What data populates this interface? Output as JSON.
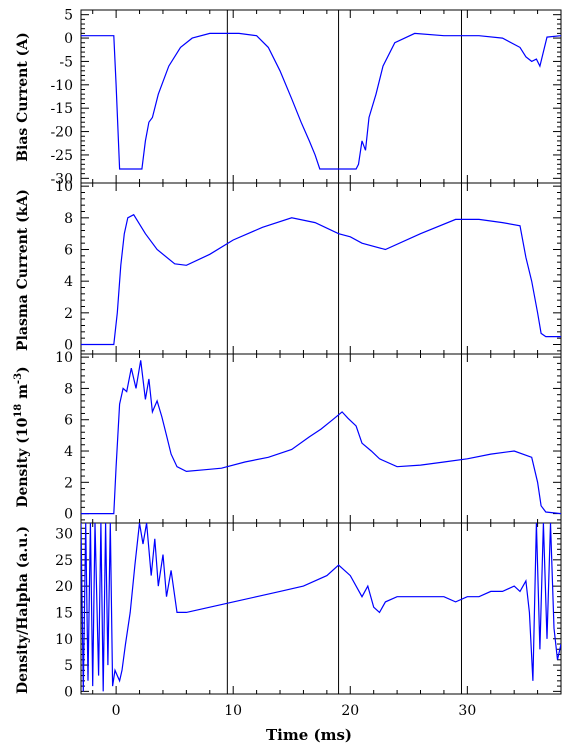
{
  "chart_data": {
    "type": "line",
    "xlabel": "Time (ms)",
    "xlim": [
      -3,
      38
    ],
    "xticks": [
      0,
      10,
      20,
      30
    ],
    "vlines": [
      9.5,
      19,
      29.5
    ],
    "line_color": "#0000ff",
    "panels": [
      {
        "id": "bias",
        "ylabel": "Bias Current (A)",
        "ylim": [
          -31,
          6
        ],
        "yticks": [
          5,
          0,
          -5,
          -10,
          -15,
          -20,
          -25,
          -30
        ],
        "x": [
          -3,
          -0.2,
          0.0,
          0.3,
          2.2,
          2.5,
          2.8,
          3.1,
          3.6,
          4.5,
          5.5,
          6.5,
          8.0,
          10.5,
          12.0,
          13.0,
          14.0,
          15.0,
          15.8,
          16.5,
          17.0,
          17.4,
          17.6,
          20.5,
          20.7,
          21.0,
          21.3,
          21.6,
          22.2,
          22.8,
          23.8,
          25.5,
          28.0,
          31.0,
          33.0,
          34.5,
          35.0,
          35.5,
          35.9,
          36.2,
          36.8,
          38
        ],
        "y": [
          0.5,
          0.5,
          -10,
          -28,
          -28,
          -22,
          -18,
          -17,
          -12,
          -6,
          -2,
          0,
          1.0,
          1.0,
          0.5,
          -2,
          -7,
          -13,
          -18,
          -22,
          -25,
          -28,
          -28,
          -28,
          -27,
          -22,
          -24,
          -17,
          -12,
          -6,
          -1,
          1.0,
          0.5,
          0.5,
          0,
          -2,
          -4,
          -5,
          -4.5,
          -6,
          0.2,
          0.5
        ]
      },
      {
        "id": "plasma",
        "ylabel": "Plasma Current (kA)",
        "ylim": [
          -0.6,
          10.2
        ],
        "yticks": [
          0,
          2,
          4,
          6,
          8,
          10
        ],
        "x": [
          -3,
          -0.2,
          0.1,
          0.4,
          0.7,
          1.0,
          1.5,
          2.5,
          3.5,
          5.0,
          6.0,
          8.0,
          10.0,
          12.5,
          15.0,
          17.0,
          19.0,
          20.0,
          21.0,
          23.0,
          26.0,
          29.0,
          31.0,
          33.0,
          34.5,
          35.0,
          35.5,
          36.0,
          36.3,
          36.7,
          38
        ],
        "y": [
          0,
          0,
          2,
          5,
          7,
          8,
          8.2,
          7,
          6,
          5.1,
          5.0,
          5.7,
          6.6,
          7.4,
          8.0,
          7.7,
          7.0,
          6.8,
          6.4,
          6.0,
          7.0,
          7.9,
          7.9,
          7.7,
          7.5,
          5.5,
          4,
          2,
          0.7,
          0.5,
          0.5
        ]
      },
      {
        "id": "density",
        "ylabel": "Density (10^18 m^-3)",
        "ylim": [
          -0.6,
          10.2
        ],
        "yticks": [
          0,
          2,
          4,
          6,
          8,
          10
        ],
        "x": [
          -3,
          -0.2,
          0.0,
          0.3,
          0.6,
          0.9,
          1.3,
          1.7,
          2.1,
          2.5,
          2.8,
          3.1,
          3.5,
          3.9,
          4.3,
          4.7,
          5.2,
          6.0,
          7.5,
          9.0,
          11.0,
          13.0,
          15.0,
          16.5,
          17.5,
          18.5,
          19.3,
          19.8,
          20.5,
          21.0,
          21.8,
          22.5,
          24.0,
          26.0,
          28.0,
          30.0,
          32.0,
          34.0,
          35.5,
          36.0,
          36.3,
          36.7,
          38
        ],
        "y": [
          0,
          0,
          3,
          7,
          8,
          7.8,
          9.3,
          8.0,
          9.8,
          7.3,
          8.6,
          6.5,
          7.2,
          6.2,
          5.0,
          3.8,
          3.0,
          2.7,
          2.8,
          2.9,
          3.3,
          3.6,
          4.1,
          4.9,
          5.4,
          6.0,
          6.5,
          6.1,
          5.6,
          4.5,
          4.0,
          3.5,
          3.0,
          3.1,
          3.3,
          3.5,
          3.8,
          4.0,
          3.6,
          2.0,
          0.5,
          0.1,
          0
        ],
        "labels": [
          "0",
          "2",
          "4",
          "6",
          "8",
          "10"
        ]
      },
      {
        "id": "ratio",
        "ylabel": "Density/Halpha (a.u.)",
        "ylim": [
          -0.5,
          32
        ],
        "yticks": [
          0,
          5,
          10,
          15,
          20,
          25,
          30
        ],
        "x": [
          -3,
          -2.8,
          -2.6,
          -2.4,
          -2.2,
          -2.0,
          -1.8,
          -1.5,
          -1.3,
          -1.1,
          -0.9,
          -0.7,
          -0.5,
          -0.3,
          -0.1,
          0.1,
          0.3,
          0.5,
          0.8,
          1.2,
          1.6,
          2.0,
          2.3,
          2.6,
          3.0,
          3.3,
          3.6,
          4.0,
          4.3,
          4.7,
          5.2,
          6.0,
          8.0,
          10.0,
          12.0,
          14.0,
          16.0,
          18.0,
          19.0,
          20.0,
          21.0,
          21.5,
          22.0,
          22.5,
          23.0,
          24.0,
          26.0,
          28.0,
          29.0,
          30.0,
          31.0,
          32.0,
          33.0,
          34.0,
          34.5,
          35.0,
          35.3,
          35.6,
          35.9,
          36.2,
          36.5,
          36.8,
          37.1,
          37.4,
          37.7,
          38
        ],
        "y": [
          32,
          0,
          32,
          2,
          32,
          1,
          32,
          3,
          32,
          0,
          32,
          5,
          32,
          1,
          4,
          3,
          2,
          4,
          9,
          15,
          24,
          32,
          28,
          32,
          22,
          29,
          20,
          26,
          18,
          23,
          15,
          15,
          16,
          17,
          18,
          19,
          20,
          22,
          24,
          22,
          18,
          20,
          16,
          15,
          17,
          18,
          18,
          18,
          17,
          18,
          18,
          19,
          19,
          20,
          19,
          21,
          15,
          2,
          32,
          8,
          32,
          10,
          32,
          12,
          6,
          9
        ]
      }
    ]
  },
  "labels": {
    "xaxis_title": "Time (ms)",
    "bias_ylabel": "Bias Current (A)",
    "plasma_ylabel": "Plasma Current (kA)",
    "density_ylabel_prefix": "Density (10",
    "density_exp1": "18",
    "density_mid": " m",
    "density_exp2": "-3",
    "density_suffix": ")",
    "ratio_ylabel": "Density/Halpha (a.u.)"
  }
}
